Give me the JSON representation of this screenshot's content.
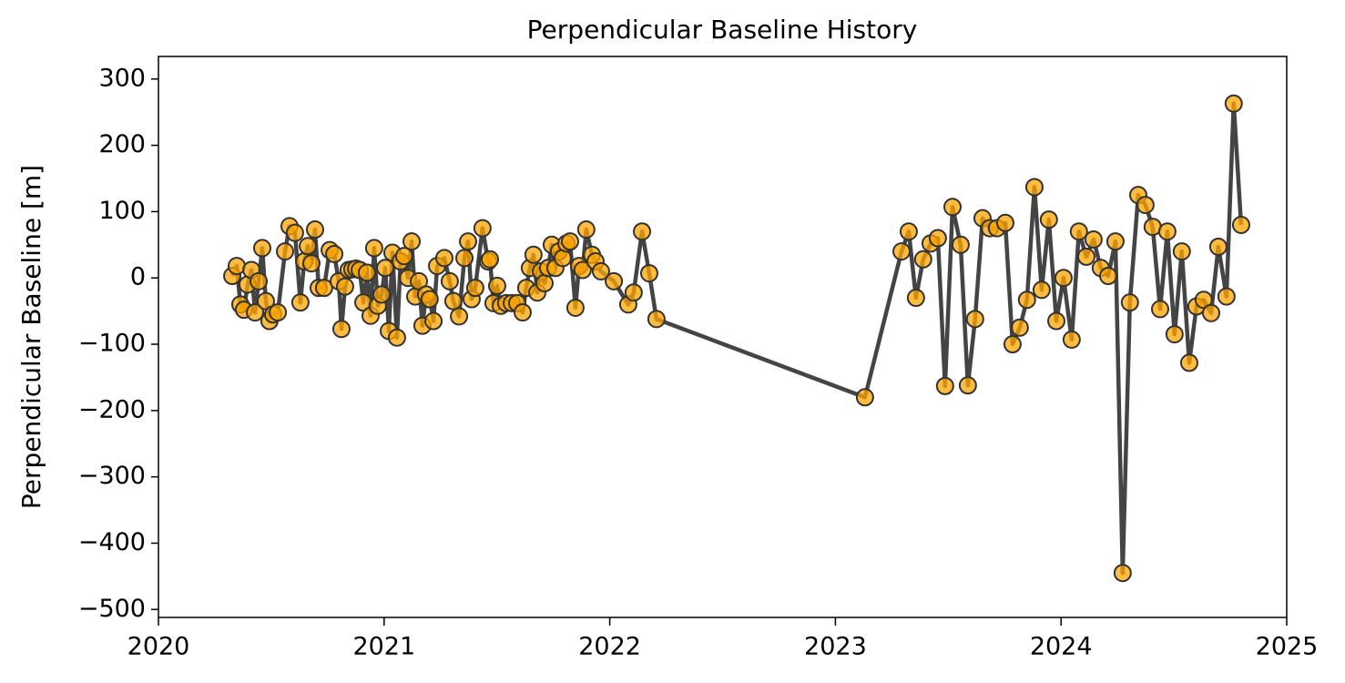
{
  "chart_data": {
    "type": "line",
    "title": "Perpendicular Baseline History",
    "ylabel": "Perpendicular Baseline [m]",
    "line_color": "#444444",
    "marker_color": "#ffa500",
    "marker_edge_color": "#333333",
    "xlim": [
      2020,
      2025
    ],
    "xticks": [
      2020,
      2021,
      2022,
      2023,
      2024,
      2025
    ],
    "ylim": [
      -512,
      334
    ],
    "yticks": [
      {
        "value": -500,
        "label": "−500"
      },
      {
        "value": -400,
        "label": "−400"
      },
      {
        "value": -300,
        "label": "−300"
      },
      {
        "value": -200,
        "label": "−200"
      },
      {
        "value": -100,
        "label": "−100"
      },
      0,
      100,
      200,
      300
    ],
    "x": [
      2020.327,
      2020.347,
      2020.363,
      2020.379,
      2020.395,
      2020.412,
      2020.428,
      2020.444,
      2020.46,
      2020.476,
      2020.492,
      2020.508,
      2020.529,
      2020.561,
      2020.581,
      2020.605,
      2020.629,
      2020.646,
      2020.662,
      2020.678,
      2020.694,
      2020.71,
      2020.734,
      2020.759,
      2020.779,
      2020.799,
      2020.811,
      2020.827,
      2020.843,
      2020.859,
      2020.876,
      2020.892,
      2020.908,
      2020.924,
      2020.94,
      2020.956,
      2020.972,
      2020.989,
      2021.005,
      2021.021,
      2021.037,
      2021.057,
      2021.073,
      2021.089,
      2021.106,
      2021.122,
      2021.138,
      2021.154,
      2021.17,
      2021.186,
      2021.202,
      2021.219,
      2021.235,
      2021.267,
      2021.291,
      2021.307,
      2021.332,
      2021.356,
      2021.372,
      2021.388,
      2021.404,
      2021.436,
      2021.461,
      2021.469,
      2021.485,
      2021.501,
      2021.517,
      2021.541,
      2021.566,
      2021.59,
      2021.614,
      2021.63,
      2021.646,
      2021.662,
      2021.679,
      2021.695,
      2021.711,
      2021.727,
      2021.743,
      2021.759,
      2021.775,
      2021.792,
      2021.808,
      2021.824,
      2021.848,
      2021.864,
      2021.88,
      2021.896,
      2021.921,
      2021.937,
      2021.961,
      2022.018,
      2022.082,
      2022.106,
      2022.143,
      2022.175,
      2022.207,
      2023.131,
      2023.293,
      2023.325,
      2023.357,
      2023.389,
      2023.422,
      2023.454,
      2023.486,
      2023.519,
      2023.555,
      2023.587,
      2023.619,
      2023.652,
      2023.684,
      2023.716,
      2023.753,
      2023.785,
      2023.817,
      2023.849,
      2023.882,
      2023.914,
      2023.946,
      2023.979,
      2024.011,
      2024.047,
      2024.079,
      2024.112,
      2024.144,
      2024.176,
      2024.209,
      2024.241,
      2024.273,
      2024.305,
      2024.342,
      2024.374,
      2024.406,
      2024.439,
      2024.471,
      2024.503,
      2024.535,
      2024.568,
      2024.6,
      2024.632,
      2024.665,
      2024.697,
      2024.733,
      2024.765,
      2024.798
    ],
    "values": [
      3,
      18,
      -40,
      -48,
      -10,
      12,
      -52,
      -5,
      45,
      -35,
      -65,
      -55,
      -52,
      40,
      78,
      68,
      -37,
      25,
      48,
      22,
      73,
      -15,
      -15,
      42,
      36,
      -5,
      -77,
      -13,
      12,
      13,
      14,
      12,
      -37,
      8,
      -57,
      45,
      -42,
      -25,
      15,
      -80,
      38,
      -90,
      25,
      33,
      0,
      55,
      -28,
      -5,
      -72,
      -25,
      -32,
      -65,
      18,
      30,
      -5,
      -35,
      -58,
      30,
      55,
      -32,
      -15,
      75,
      25,
      28,
      -38,
      -12,
      -42,
      -38,
      -38,
      -38,
      -52,
      -15,
      15,
      35,
      -22,
      10,
      -8,
      15,
      50,
      15,
      40,
      30,
      52,
      55,
      -45,
      18,
      12,
      73,
      35,
      25,
      10,
      -5,
      -40,
      -22,
      70,
      7,
      -62,
      -180,
      40,
      70,
      -30,
      28,
      52,
      60,
      -163,
      107,
      50,
      -162,
      -62,
      90,
      75,
      75,
      83,
      -100,
      -75,
      -33,
      137,
      -18,
      88,
      -65,
      0,
      -93,
      70,
      32,
      58,
      15,
      3,
      55,
      -445,
      -37,
      125,
      110,
      77,
      -47,
      70,
      -85,
      40,
      -128,
      -43,
      -33,
      -53,
      47,
      -28,
      263,
      80
    ]
  }
}
